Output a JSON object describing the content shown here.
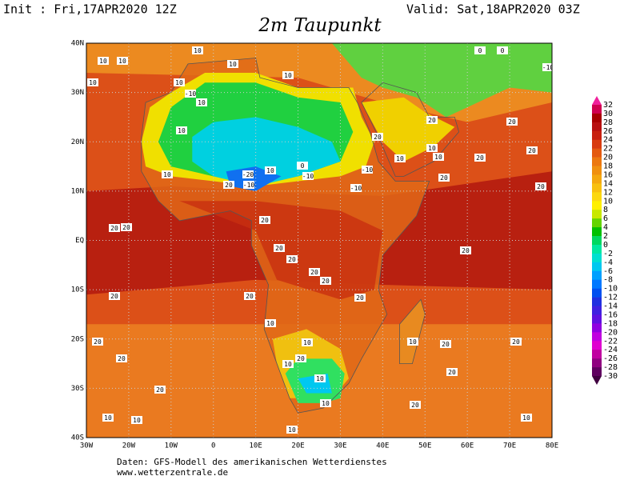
{
  "header": {
    "init": "Init : Fri,17APR2020 12Z",
    "valid": "Valid: Sat,18APR2020 03Z",
    "title": "2m Taupunkt"
  },
  "map": {
    "lon_ticks": [
      {
        "value": -30,
        "label": "30W"
      },
      {
        "value": -20,
        "label": "20W"
      },
      {
        "value": -10,
        "label": "10W"
      },
      0,
      {
        "value": 10,
        "label": "10E"
      },
      {
        "value": 20,
        "label": "20E"
      },
      {
        "value": 30,
        "label": "30E"
      },
      {
        "value": 40,
        "label": "40E"
      },
      {
        "value": 50,
        "label": "50E"
      },
      {
        "value": 60,
        "label": "60E"
      },
      {
        "value": 70,
        "label": "70E"
      },
      {
        "value": 80,
        "label": "80E"
      }
    ],
    "lat_ticks": [
      {
        "value": 40,
        "label": "40N"
      },
      {
        "value": 30,
        "label": "30N"
      },
      {
        "value": 20,
        "label": "20N"
      },
      {
        "value": 10,
        "label": "10N"
      },
      {
        "value": 0,
        "label": "EQ"
      },
      {
        "value": -10,
        "label": "10S"
      },
      {
        "value": -20,
        "label": "20S"
      },
      {
        "value": -30,
        "label": "30S"
      },
      {
        "value": -40,
        "label": "40S"
      }
    ],
    "lon_range": [
      -30,
      80
    ],
    "lat_range": [
      40,
      -40
    ],
    "contour_labels": [
      "10",
      "10",
      "10",
      "10",
      "10",
      "10",
      "10",
      "-10",
      "10",
      "10",
      "10",
      "20",
      "-20",
      "-10",
      "10",
      "0",
      "-10",
      "-10",
      "-10",
      "20",
      "10",
      "10",
      "10",
      "20",
      "20",
      "20",
      "20",
      "20",
      "20",
      "20",
      "20",
      "20",
      "20",
      "20",
      "20",
      "20",
      "10",
      "10",
      "20",
      "10",
      "10",
      "10",
      "20",
      "20",
      "20",
      "10",
      "20",
      "20",
      "20",
      "20",
      "10",
      "10",
      "10",
      "10",
      "20",
      "20",
      "20",
      "20",
      "0",
      "0",
      "-10"
    ]
  },
  "colorbar": {
    "levels": [
      32,
      30,
      28,
      26,
      24,
      22,
      20,
      18,
      16,
      14,
      12,
      10,
      8,
      6,
      4,
      2,
      0,
      -2,
      -4,
      -6,
      -8,
      -10,
      -12,
      -14,
      -16,
      -18,
      -20,
      -22,
      -24,
      -26,
      -28,
      -30
    ],
    "colors": [
      "#f0209c",
      "#d00050",
      "#a80000",
      "#b81010",
      "#c82010",
      "#d83c10",
      "#e45a10",
      "#ec7810",
      "#f09010",
      "#f4a810",
      "#f8c010",
      "#fcd810",
      "#fff000",
      "#c8e800",
      "#64d400",
      "#00c000",
      "#00d860",
      "#00e8a0",
      "#00e0d0",
      "#00c8f0",
      "#00a0ff",
      "#0078ff",
      "#0050f0",
      "#2030e0",
      "#4020e0",
      "#6010e0",
      "#9000e0",
      "#c000e0",
      "#e000d0",
      "#c000a0",
      "#900080",
      "#600060",
      "#400040"
    ]
  },
  "footer": {
    "source": "Daten: GFS-Modell des amerikanischen Wetterdienstes",
    "url": "www.wetterzentrale.de"
  }
}
